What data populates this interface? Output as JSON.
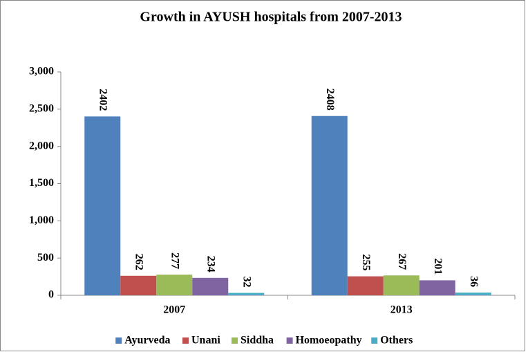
{
  "chart_data": {
    "type": "bar",
    "title": "Growth in AYUSH hospitals from 2007-2013",
    "categories": [
      "2007",
      "2013"
    ],
    "series": [
      {
        "name": "Ayurveda",
        "color": "#4f81bd",
        "values": [
          2402,
          2408
        ]
      },
      {
        "name": "Unani",
        "color": "#c0504d",
        "values": [
          262,
          255
        ]
      },
      {
        "name": "Siddha",
        "color": "#9bbb59",
        "values": [
          277,
          267
        ]
      },
      {
        "name": "Homoeopathy",
        "color": "#8064a2",
        "values": [
          234,
          201
        ]
      },
      {
        "name": "Others",
        "color": "#4bacc6",
        "values": [
          32,
          36
        ]
      }
    ],
    "ylim": [
      0,
      3000
    ],
    "yticks": [
      0,
      500,
      {
        "value": 1000,
        "label": "1,000"
      },
      {
        "value": 1500,
        "label": "1,500"
      },
      {
        "value": 2000,
        "label": "2,000"
      },
      {
        "value": 2500,
        "label": "2,500"
      },
      {
        "value": 3000,
        "label": "3,000"
      }
    ],
    "legend": "bottom"
  }
}
